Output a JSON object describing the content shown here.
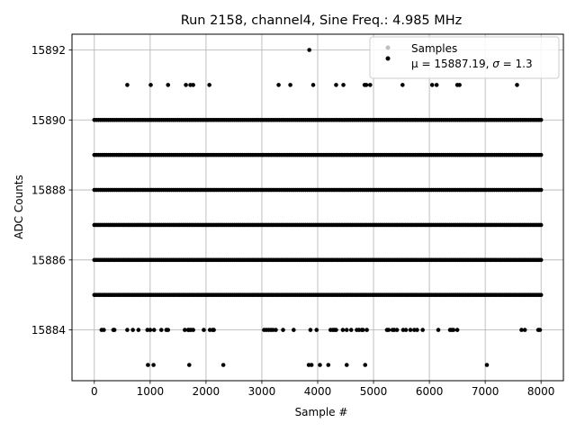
{
  "chart_data": {
    "type": "scatter",
    "title": "Run 2158, channel4, Sine Freq.: 4.985 MHz",
    "xlabel": "Sample #",
    "ylabel": "ADC Counts",
    "xlim": [
      -400,
      8400
    ],
    "ylim": [
      15882.55,
      15892.45
    ],
    "xticks": [
      0,
      1000,
      2000,
      3000,
      4000,
      5000,
      6000,
      7000,
      8000
    ],
    "xtick_labels": [
      "0",
      "1000",
      "2000",
      "3000",
      "4000",
      "5000",
      "6000",
      "7000",
      "8000"
    ],
    "yticks": [
      15884,
      15886,
      15888,
      15890,
      15892
    ],
    "ytick_labels": [
      "15884",
      "15886",
      "15888",
      "15890",
      "15892"
    ],
    "grid": true,
    "legend_position": "top-right",
    "legend": [
      {
        "label": "Samples",
        "marker_color": "#bfbfbf"
      },
      {
        "label_prefix": "μ = 15887.19, ",
        "sigma_symbol": "σ",
        "label_suffix": " = 1.3",
        "marker_color": "#000000"
      }
    ],
    "series": [
      {
        "marker_color": "#000000",
        "dense_levels": [
          {
            "y": 15885,
            "x_range": [
              0,
              8000
            ]
          },
          {
            "y": 15886,
            "x_range": [
              0,
              8000
            ]
          },
          {
            "y": 15887,
            "x_range": [
              0,
              8000
            ]
          },
          {
            "y": 15888,
            "x_range": [
              0,
              8000
            ]
          },
          {
            "y": 15889,
            "x_range": [
              0,
              8000
            ]
          },
          {
            "y": 15890,
            "x_range": [
              0,
              8000
            ]
          }
        ],
        "sparse_points": [
          {
            "y": 15892,
            "x": [
              3850
            ]
          },
          {
            "y": 15891,
            "x": [
              590,
              1010,
              1320,
              1640,
              1720,
              1770,
              2060,
              3300,
              3510,
              3920,
              4330,
              4460,
              4840,
              4870,
              4940,
              5520,
              6050,
              6130,
              6500,
              6540,
              7570
            ]
          },
          {
            "y": 15884,
            "x": [
              130,
              170,
              340,
              360,
              590,
              690,
              790,
              950,
              1000,
              1070,
              1200,
              1290,
              1320,
              1620,
              1680,
              1700,
              1730,
              1770,
              1960,
              2070,
              2120,
              2140,
              3040,
              3080,
              3120,
              3160,
              3200,
              3250,
              3380,
              3570,
              3870,
              3980,
              4230,
              4270,
              4300,
              4330,
              4450,
              4520,
              4600,
              4700,
              4740,
              4790,
              4810,
              4880,
              5240,
              5270,
              5340,
              5370,
              5420,
              5530,
              5580,
              5660,
              5730,
              5780,
              5880,
              6160,
              6370,
              6400,
              6430,
              6500,
              7650,
              7710,
              7950,
              7980
            ]
          },
          {
            "y": 15883,
            "x": [
              960,
              1060,
              1700,
              2310,
              3840,
              3890,
              4040,
              4190,
              4520,
              4850,
              7030
            ]
          }
        ]
      }
    ]
  }
}
